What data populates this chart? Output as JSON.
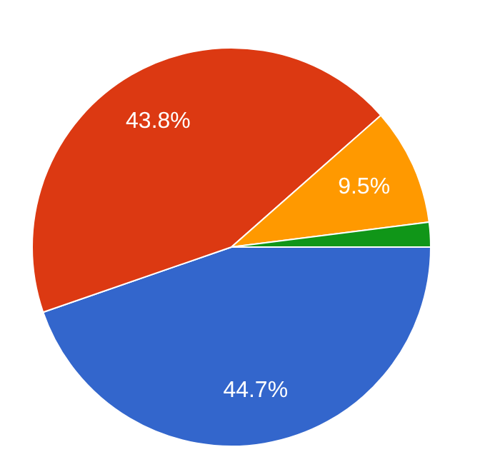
{
  "chart_data": {
    "type": "pie",
    "categories": [
      null,
      null,
      null,
      null
    ],
    "values": [
      44.7,
      43.8,
      9.5,
      2.0
    ],
    "colors": [
      "#3366cc",
      "#dc3912",
      "#ff9900",
      "#109618"
    ],
    "value_labels": [
      "44.7%",
      "43.8%",
      "9.5%",
      null
    ],
    "legend": false
  }
}
